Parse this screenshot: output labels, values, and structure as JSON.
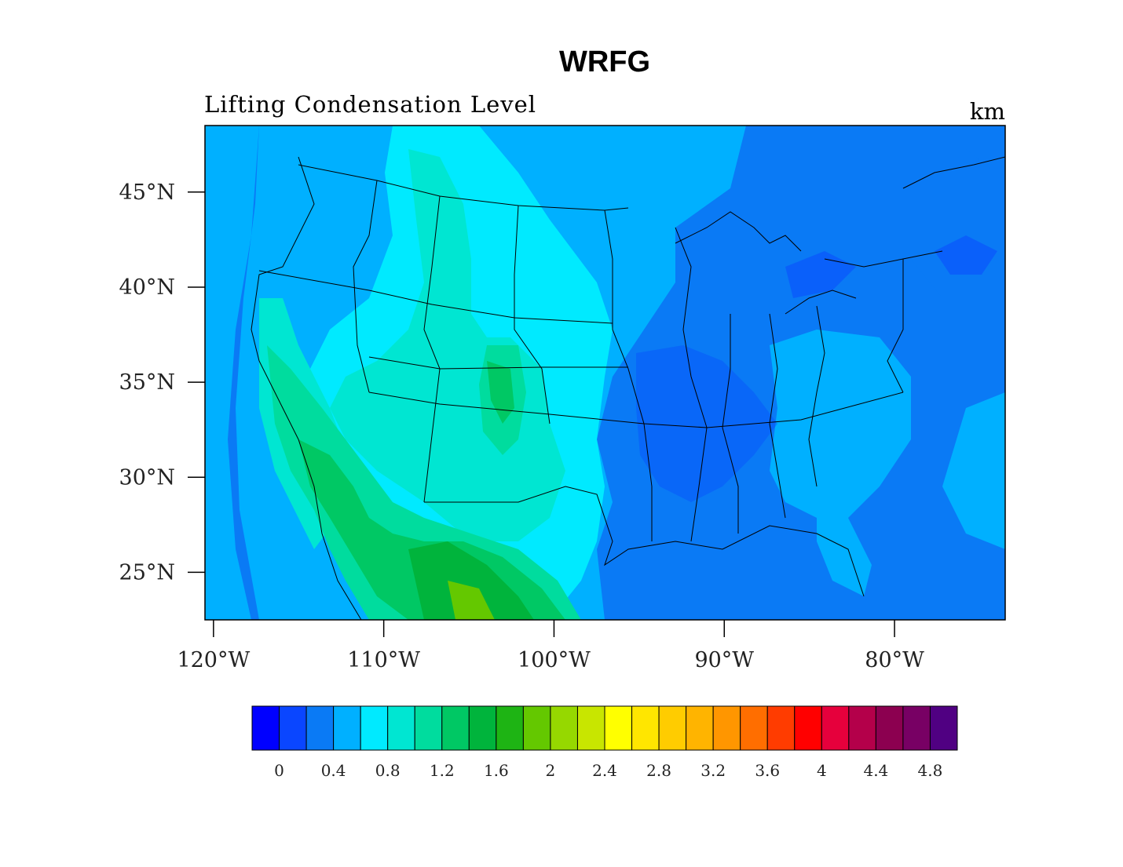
{
  "title": "WRFG",
  "subtitle": "Lifting Condensation Level",
  "units": "km",
  "map": {
    "lat_ticks": [
      "45°N",
      "40°N",
      "35°N",
      "30°N",
      "25°N"
    ],
    "lat_values": [
      45,
      40,
      35,
      30,
      25
    ],
    "lon_ticks": [
      "120°W",
      "110°W",
      "100°W",
      "90°W",
      "80°W"
    ],
    "lon_values": [
      -120,
      -110,
      -100,
      -90,
      -80
    ],
    "extent": {
      "lon_min": -120.5,
      "lon_max": -73.5,
      "lat_min": 22.5,
      "lat_max": 48.5
    },
    "ocean_color": "#0a7af5"
  },
  "colorbar": {
    "labels": [
      "0",
      "0.4",
      "0.8",
      "1.2",
      "1.6",
      "2",
      "2.4",
      "2.8",
      "3.2",
      "3.6",
      "4",
      "4.4",
      "4.8"
    ],
    "colors": [
      "#0000ff",
      "#0a46ff",
      "#0a7af5",
      "#00b0ff",
      "#00eaff",
      "#00e6d2",
      "#00dc9e",
      "#00c864",
      "#00b43c",
      "#1eb414",
      "#64c800",
      "#96d800",
      "#c8e600",
      "#ffff00",
      "#ffe600",
      "#ffcc00",
      "#ffb400",
      "#ff9600",
      "#ff6e00",
      "#ff3c00",
      "#ff0000",
      "#e6003c",
      "#b4004a",
      "#8c0050",
      "#780064",
      "#500082"
    ]
  }
}
